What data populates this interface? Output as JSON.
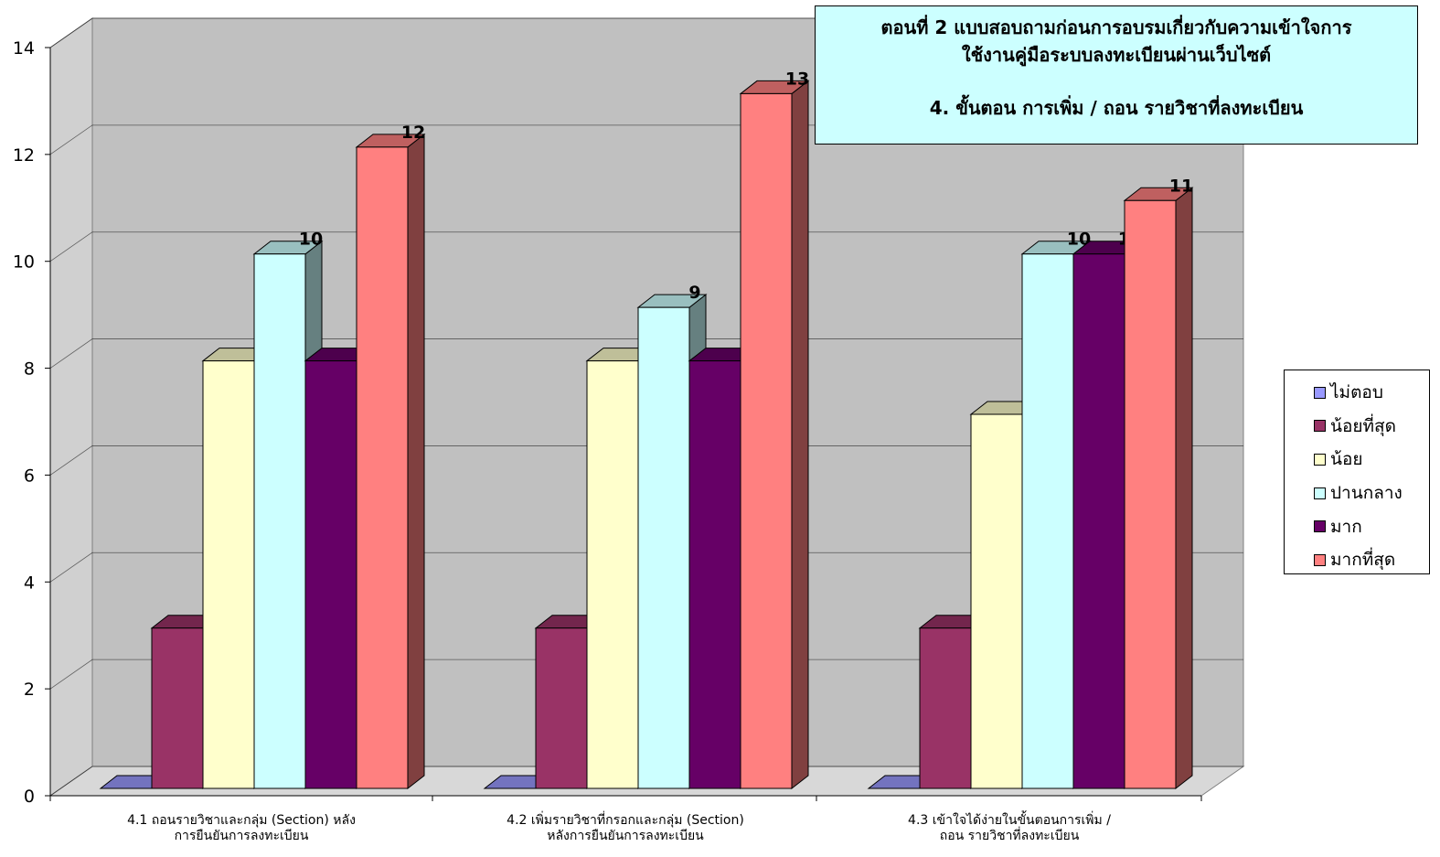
{
  "title": {
    "line1": "ตอนที่ 2 แบบสอบถามก่อนการอบรมเกี่ยวกับความเข้าใจการ",
    "line2": "ใช้งานคู่มือระบบลงทะเบียนผ่านเว็บไซต์",
    "line3": "4. ขั้นตอน การเพิ่ม / ถอน รายวิชาที่ลงทะเบียน"
  },
  "chart_data": {
    "type": "bar",
    "style": "3d-clustered-column",
    "categories": [
      [
        "4.1  ถอนรายวิชาและกลุ่ม (Section) หลัง",
        "การยืนยันการลงทะเบียน"
      ],
      [
        "4.2  เพิ่มรายวิชาที่กรอกและกลุ่ม (Section)",
        "หลังการยืนยันการลงทะเบียน"
      ],
      [
        "4.3  เข้าใจได้ง่ายในขั้นตอนการเพิ่ม /",
        "ถอน  รายวิชาที่ลงทะเบียน"
      ]
    ],
    "series": [
      {
        "name": "ไม่ตอบ",
        "values": [
          0,
          0,
          0
        ],
        "color": "#9999ff"
      },
      {
        "name": "น้อยที่สุด",
        "values": [
          3,
          3,
          3
        ],
        "color": "#993366"
      },
      {
        "name": "น้อย",
        "values": [
          8,
          8,
          7
        ],
        "color": "#ffffcc"
      },
      {
        "name": "ปานกลาง",
        "values": [
          10,
          9,
          10
        ],
        "color": "#ccffff"
      },
      {
        "name": "มาก",
        "values": [
          8,
          8,
          10
        ],
        "color": "#660066"
      },
      {
        "name": "มากที่สุด",
        "values": [
          12,
          13,
          11
        ],
        "color": "#ff8080"
      }
    ],
    "ylim": [
      0,
      14
    ],
    "yticks": [
      0,
      2,
      4,
      6,
      8,
      10,
      12,
      14
    ],
    "grid": true,
    "wall_color": "#c0c0c0",
    "legend_position": "right"
  }
}
